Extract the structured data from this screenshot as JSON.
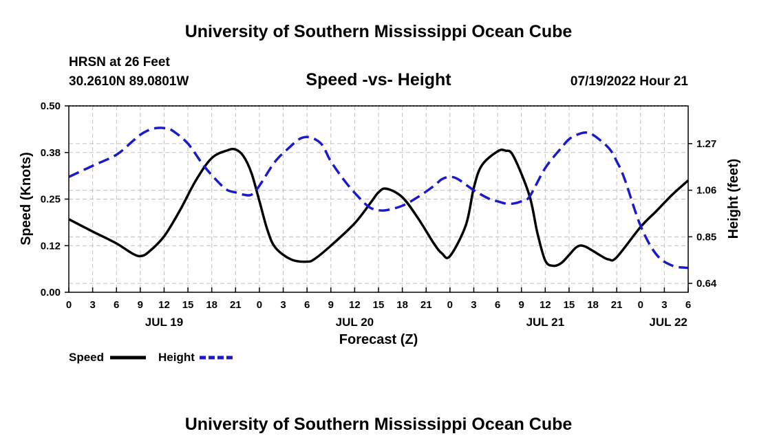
{
  "header": {
    "title": "University of Southern Mississippi Ocean Cube",
    "station": "HRSN at 26 Feet",
    "location": "30.2610N  89.0801W",
    "subtitle": "Speed -vs- Height",
    "timestamp": "07/19/2022 Hour 21",
    "footer_title": "University of Southern Mississippi Ocean Cube"
  },
  "colors": {
    "speed": "#000000",
    "height": "#1a1acc",
    "grid": "#c0c0c0"
  },
  "chart_data": {
    "type": "line",
    "title": "Speed -vs- Height",
    "xlabel": "Forecast (Z)",
    "ylabel": "Speed (Knots)",
    "y2label": "Height (feet)",
    "x_range": [
      0,
      78
    ],
    "ylim": [
      0,
      0.5
    ],
    "y2lim": [
      0.6,
      1.44
    ],
    "x_ticks": [
      {
        "x": 0,
        "label": "0"
      },
      {
        "x": 3,
        "label": "3"
      },
      {
        "x": 6,
        "label": "6"
      },
      {
        "x": 9,
        "label": "9"
      },
      {
        "x": 12,
        "label": "12"
      },
      {
        "x": 15,
        "label": "15"
      },
      {
        "x": 18,
        "label": "18"
      },
      {
        "x": 21,
        "label": "21"
      },
      {
        "x": 24,
        "label": "0"
      },
      {
        "x": 27,
        "label": "3"
      },
      {
        "x": 30,
        "label": "6"
      },
      {
        "x": 33,
        "label": "9"
      },
      {
        "x": 36,
        "label": "12"
      },
      {
        "x": 39,
        "label": "15"
      },
      {
        "x": 42,
        "label": "18"
      },
      {
        "x": 45,
        "label": "21"
      },
      {
        "x": 48,
        "label": "0"
      },
      {
        "x": 51,
        "label": "3"
      },
      {
        "x": 54,
        "label": "6"
      },
      {
        "x": 57,
        "label": "9"
      },
      {
        "x": 60,
        "label": "12"
      },
      {
        "x": 63,
        "label": "15"
      },
      {
        "x": 66,
        "label": "18"
      },
      {
        "x": 69,
        "label": "21"
      },
      {
        "x": 72,
        "label": "0"
      },
      {
        "x": 75,
        "label": "3"
      },
      {
        "x": 78,
        "label": "6"
      }
    ],
    "date_labels": [
      {
        "x": 12,
        "label": "JUL 19"
      },
      {
        "x": 36,
        "label": "JUL 20"
      },
      {
        "x": 60,
        "label": "JUL 21"
      },
      {
        "x": 75.5,
        "label": "JUL 22"
      }
    ],
    "y_ticks": [
      {
        "v": 0.0,
        "label": "0.00"
      },
      {
        "v": 0.125,
        "label": "0.12"
      },
      {
        "v": 0.25,
        "label": "0.25"
      },
      {
        "v": 0.375,
        "label": "0.38"
      },
      {
        "v": 0.5,
        "label": "0.50"
      }
    ],
    "y2_ticks": [
      {
        "v": 0.64,
        "label": "0.64"
      },
      {
        "v": 0.85,
        "label": "0.85"
      },
      {
        "v": 1.06,
        "label": "1.06"
      },
      {
        "v": 1.27,
        "label": "1.27"
      }
    ],
    "series": [
      {
        "name": "Speed",
        "axis": "left",
        "style": "solid",
        "x": [
          0,
          3,
          6,
          8,
          9,
          10,
          12,
          14,
          16,
          18,
          20,
          21,
          22,
          23,
          24,
          25,
          26,
          28,
          30,
          31,
          33,
          36,
          38,
          39,
          40,
          42,
          44,
          46,
          47,
          48,
          50,
          51,
          52,
          54,
          55,
          56,
          58,
          59,
          60,
          61,
          62,
          63,
          64,
          65,
          67,
          68,
          69,
          72,
          74,
          76,
          78
        ],
        "values": [
          0.196,
          0.163,
          0.131,
          0.104,
          0.097,
          0.107,
          0.15,
          0.22,
          0.3,
          0.36,
          0.381,
          0.383,
          0.365,
          0.32,
          0.245,
          0.168,
          0.12,
          0.088,
          0.082,
          0.09,
          0.125,
          0.185,
          0.24,
          0.268,
          0.278,
          0.255,
          0.198,
          0.13,
          0.104,
          0.097,
          0.18,
          0.28,
          0.34,
          0.378,
          0.38,
          0.365,
          0.26,
          0.16,
          0.085,
          0.071,
          0.078,
          0.1,
          0.122,
          0.123,
          0.098,
          0.088,
          0.094,
          0.175,
          0.218,
          0.262,
          0.3
        ]
      },
      {
        "name": "Height",
        "axis": "right",
        "style": "dashed",
        "x": [
          0,
          3,
          6,
          8,
          9,
          10,
          11,
          12,
          13,
          15,
          17,
          19,
          20,
          21,
          22,
          23,
          24,
          26,
          28,
          29,
          30,
          31,
          32,
          33,
          35,
          37,
          38,
          39,
          40,
          42,
          44,
          46,
          47,
          48,
          49,
          51,
          53,
          54,
          55,
          56,
          57,
          58,
          60,
          62,
          63,
          64,
          65,
          66,
          68,
          69,
          70,
          72,
          74,
          76,
          78
        ],
        "values": [
          1.12,
          1.17,
          1.22,
          1.28,
          1.31,
          1.33,
          1.34,
          1.34,
          1.33,
          1.27,
          1.17,
          1.09,
          1.06,
          1.05,
          1.04,
          1.04,
          1.08,
          1.19,
          1.26,
          1.29,
          1.3,
          1.29,
          1.26,
          1.19,
          1.09,
          1.01,
          0.98,
          0.97,
          0.97,
          0.99,
          1.03,
          1.08,
          1.11,
          1.12,
          1.11,
          1.06,
          1.02,
          1.01,
          1.0,
          1.0,
          1.01,
          1.03,
          1.16,
          1.25,
          1.29,
          1.31,
          1.32,
          1.31,
          1.25,
          1.19,
          1.11,
          0.9,
          0.77,
          0.72,
          0.71
        ]
      }
    ],
    "legend": [
      {
        "name": "Speed",
        "label": "Speed"
      },
      {
        "name": "Height",
        "label": "Height"
      }
    ]
  }
}
